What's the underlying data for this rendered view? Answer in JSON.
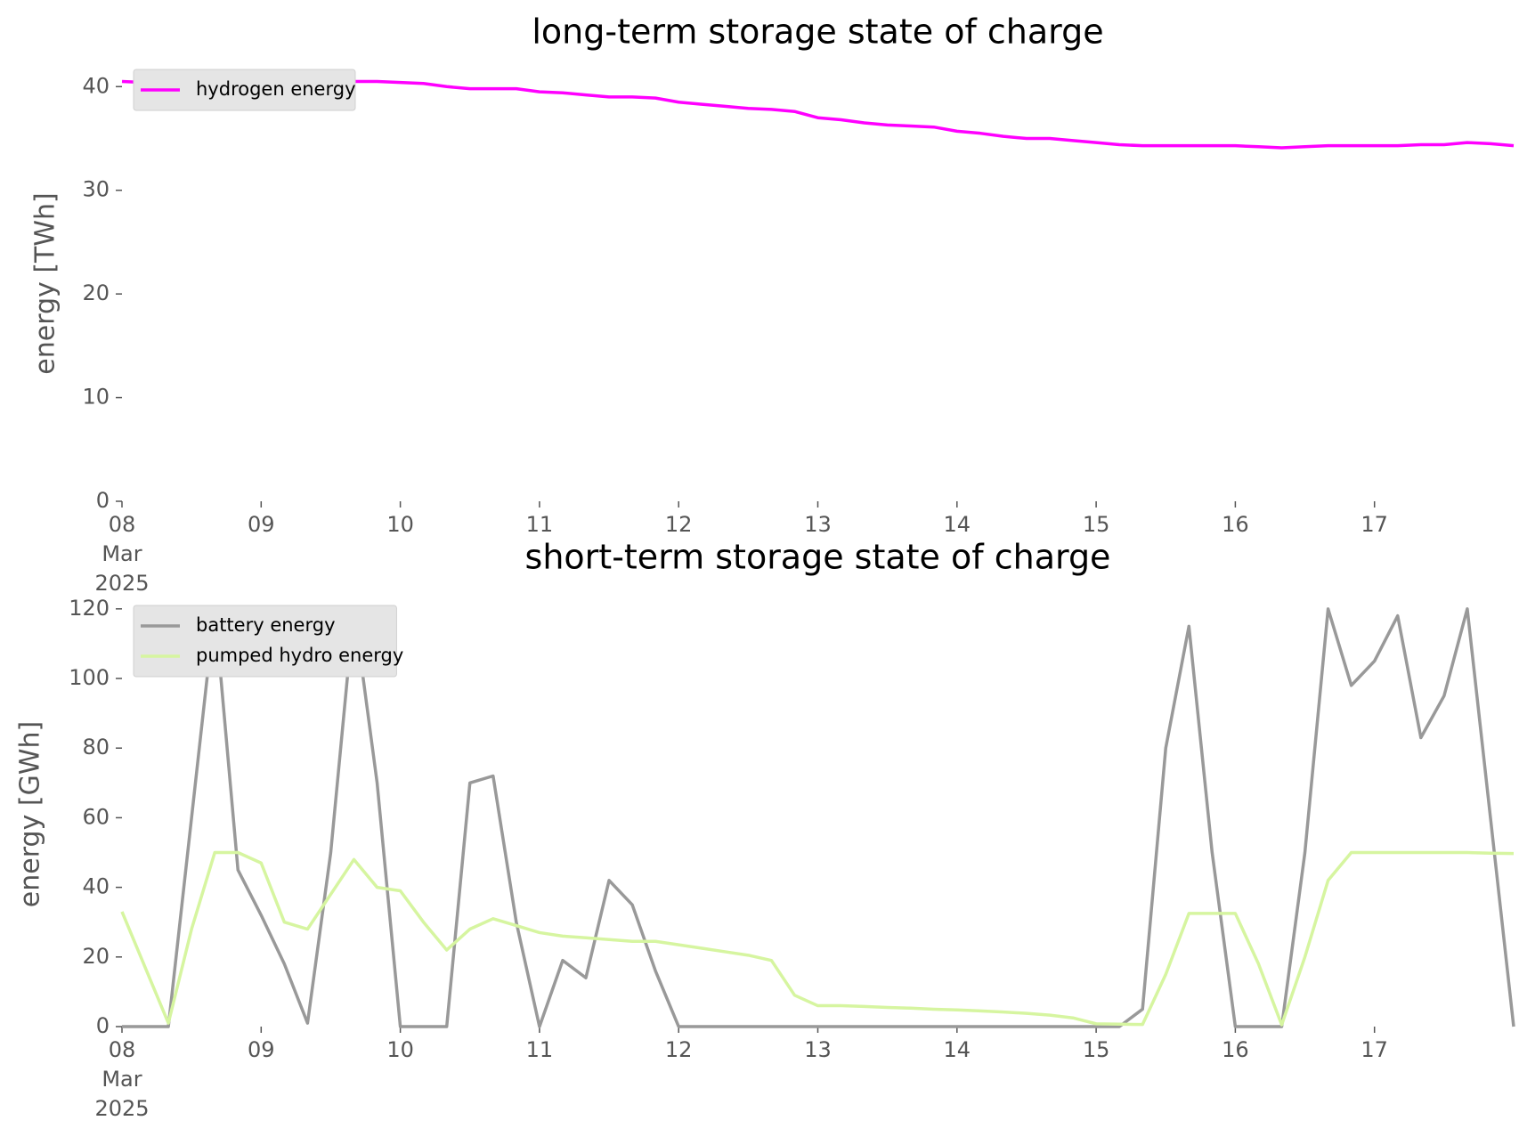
{
  "chart_data": [
    {
      "type": "line",
      "title": "long-term storage state of charge",
      "y_label": "energy [TWh]",
      "legend": "upper left",
      "x": [
        "2025-03-08T00:00",
        "2025-03-08T04:00",
        "2025-03-08T08:00",
        "2025-03-08T12:00",
        "2025-03-08T16:00",
        "2025-03-08T20:00",
        "2025-03-09T00:00",
        "2025-03-09T04:00",
        "2025-03-09T08:00",
        "2025-03-09T12:00",
        "2025-03-09T16:00",
        "2025-03-09T20:00",
        "2025-03-10T00:00",
        "2025-03-10T04:00",
        "2025-03-10T08:00",
        "2025-03-10T12:00",
        "2025-03-10T16:00",
        "2025-03-10T20:00",
        "2025-03-11T00:00",
        "2025-03-11T04:00",
        "2025-03-11T08:00",
        "2025-03-11T12:00",
        "2025-03-11T16:00",
        "2025-03-11T20:00",
        "2025-03-12T00:00",
        "2025-03-12T04:00",
        "2025-03-12T08:00",
        "2025-03-12T12:00",
        "2025-03-12T16:00",
        "2025-03-12T20:00",
        "2025-03-13T00:00",
        "2025-03-13T04:00",
        "2025-03-13T08:00",
        "2025-03-13T12:00",
        "2025-03-13T16:00",
        "2025-03-13T20:00",
        "2025-03-14T00:00",
        "2025-03-14T04:00",
        "2025-03-14T08:00",
        "2025-03-14T12:00",
        "2025-03-14T16:00",
        "2025-03-14T20:00",
        "2025-03-15T00:00",
        "2025-03-15T04:00",
        "2025-03-15T08:00",
        "2025-03-15T12:00",
        "2025-03-15T16:00",
        "2025-03-15T20:00",
        "2025-03-16T00:00",
        "2025-03-16T04:00",
        "2025-03-16T08:00",
        "2025-03-16T12:00",
        "2025-03-16T16:00",
        "2025-03-16T20:00",
        "2025-03-17T00:00",
        "2025-03-17T04:00",
        "2025-03-17T08:00",
        "2025-03-17T12:00",
        "2025-03-17T16:00",
        "2025-03-17T20:00",
        "2025-03-18T00:00"
      ],
      "series": [
        {
          "name": "hydrogen energy",
          "color": "#ff00ff",
          "values": [
            40.5,
            40.4,
            40.3,
            40.2,
            40.2,
            40.3,
            40.3,
            40.3,
            40.4,
            40.4,
            40.5,
            40.5,
            40.4,
            40.3,
            40.0,
            39.8,
            39.8,
            39.8,
            39.5,
            39.4,
            39.2,
            39.0,
            39.0,
            38.9,
            38.5,
            38.3,
            38.1,
            37.9,
            37.8,
            37.6,
            37.0,
            36.8,
            36.5,
            36.3,
            36.2,
            36.1,
            35.7,
            35.5,
            35.2,
            35.0,
            35.0,
            34.8,
            34.6,
            34.4,
            34.3,
            34.3,
            34.3,
            34.3,
            34.3,
            34.2,
            34.1,
            34.2,
            34.3,
            34.3,
            34.3,
            34.3,
            34.4,
            34.4,
            34.6,
            34.5,
            34.3
          ]
        }
      ],
      "xlim": [
        "2025-03-08T00:00",
        "2025-03-18T00:00"
      ],
      "xticks": [
        {
          "value": "2025-03-08T00:00",
          "label": "08 Mar 2025"
        },
        {
          "value": "2025-03-09T00:00",
          "label": "09"
        },
        {
          "value": "2025-03-10T00:00",
          "label": "10"
        },
        {
          "value": "2025-03-11T00:00",
          "label": "11"
        },
        {
          "value": "2025-03-12T00:00",
          "label": "12"
        },
        {
          "value": "2025-03-13T00:00",
          "label": "13"
        },
        {
          "value": "2025-03-14T00:00",
          "label": "14"
        },
        {
          "value": "2025-03-15T00:00",
          "label": "15"
        },
        {
          "value": "2025-03-16T00:00",
          "label": "16"
        },
        {
          "value": "2025-03-17T00:00",
          "label": "17"
        }
      ],
      "ylim": [
        0,
        42
      ],
      "yticks": [
        0,
        10,
        20,
        30,
        40
      ]
    },
    {
      "type": "line",
      "title": "short-term storage state of charge",
      "y_label": "energy [GWh]",
      "legend": "upper left",
      "x": [
        "2025-03-08T00:00",
        "2025-03-08T04:00",
        "2025-03-08T08:00",
        "2025-03-08T12:00",
        "2025-03-08T16:00",
        "2025-03-08T20:00",
        "2025-03-09T00:00",
        "2025-03-09T04:00",
        "2025-03-09T08:00",
        "2025-03-09T12:00",
        "2025-03-09T16:00",
        "2025-03-09T20:00",
        "2025-03-10T00:00",
        "2025-03-10T04:00",
        "2025-03-10T08:00",
        "2025-03-10T12:00",
        "2025-03-10T16:00",
        "2025-03-10T20:00",
        "2025-03-11T00:00",
        "2025-03-11T04:00",
        "2025-03-11T08:00",
        "2025-03-11T12:00",
        "2025-03-11T16:00",
        "2025-03-11T20:00",
        "2025-03-12T00:00",
        "2025-03-12T04:00",
        "2025-03-12T08:00",
        "2025-03-12T12:00",
        "2025-03-12T16:00",
        "2025-03-12T20:00",
        "2025-03-13T00:00",
        "2025-03-13T04:00",
        "2025-03-13T08:00",
        "2025-03-13T12:00",
        "2025-03-13T16:00",
        "2025-03-13T20:00",
        "2025-03-14T00:00",
        "2025-03-14T04:00",
        "2025-03-14T08:00",
        "2025-03-14T12:00",
        "2025-03-14T16:00",
        "2025-03-14T20:00",
        "2025-03-15T00:00",
        "2025-03-15T04:00",
        "2025-03-15T08:00",
        "2025-03-15T12:00",
        "2025-03-15T16:00",
        "2025-03-15T20:00",
        "2025-03-16T00:00",
        "2025-03-16T04:00",
        "2025-03-16T08:00",
        "2025-03-16T12:00",
        "2025-03-16T16:00",
        "2025-03-16T20:00",
        "2025-03-17T00:00",
        "2025-03-17T04:00",
        "2025-03-17T08:00",
        "2025-03-17T12:00",
        "2025-03-17T16:00",
        "2025-03-17T20:00",
        "2025-03-18T00:00"
      ],
      "series": [
        {
          "name": "battery energy",
          "color": "#999999",
          "values": [
            0,
            0,
            0,
            60,
            120,
            45,
            32,
            18,
            1,
            50,
            120,
            70,
            0,
            0,
            0,
            70,
            72,
            30,
            0,
            19,
            14,
            42,
            35,
            16,
            0,
            0,
            0,
            0,
            0,
            0,
            0,
            0,
            0,
            0,
            0,
            0,
            0,
            0,
            0,
            0,
            0,
            0,
            0,
            0,
            5,
            80,
            115,
            50,
            0,
            0,
            0,
            50,
            120,
            98,
            105,
            118,
            83,
            95,
            120,
            60,
            0
          ]
        },
        {
          "name": "pumped hydro energy",
          "color": "#d6f5a0",
          "values": [
            33,
            17,
            1,
            28,
            50,
            50,
            47,
            30,
            28,
            38,
            48,
            40,
            39,
            30,
            22,
            28,
            31,
            29,
            27,
            26,
            25.5,
            25,
            24.5,
            24.5,
            23.5,
            22.5,
            21.5,
            20.5,
            19,
            9,
            6,
            6,
            5.8,
            5.5,
            5.3,
            5.0,
            4.8,
            4.5,
            4.2,
            3.8,
            3.3,
            2.5,
            0.8,
            0.7,
            0.6,
            15,
            32.5,
            32.5,
            32.5,
            18,
            0.5,
            20,
            42,
            50,
            50,
            50,
            50,
            50,
            50,
            49.8,
            49.7
          ]
        }
      ],
      "xlim": [
        "2025-03-08T00:00",
        "2025-03-18T00:00"
      ],
      "xticks": [
        {
          "value": "2025-03-08T00:00",
          "label": "08 Mar 2025"
        },
        {
          "value": "2025-03-09T00:00",
          "label": "09"
        },
        {
          "value": "2025-03-10T00:00",
          "label": "10"
        },
        {
          "value": "2025-03-11T00:00",
          "label": "11"
        },
        {
          "value": "2025-03-12T00:00",
          "label": "12"
        },
        {
          "value": "2025-03-13T00:00",
          "label": "13"
        },
        {
          "value": "2025-03-14T00:00",
          "label": "14"
        },
        {
          "value": "2025-03-15T00:00",
          "label": "15"
        },
        {
          "value": "2025-03-16T00:00",
          "label": "16"
        },
        {
          "value": "2025-03-17T00:00",
          "label": "17"
        }
      ],
      "ylim": [
        0,
        122
      ],
      "yticks": [
        0,
        20,
        40,
        60,
        80,
        100,
        120
      ]
    }
  ]
}
